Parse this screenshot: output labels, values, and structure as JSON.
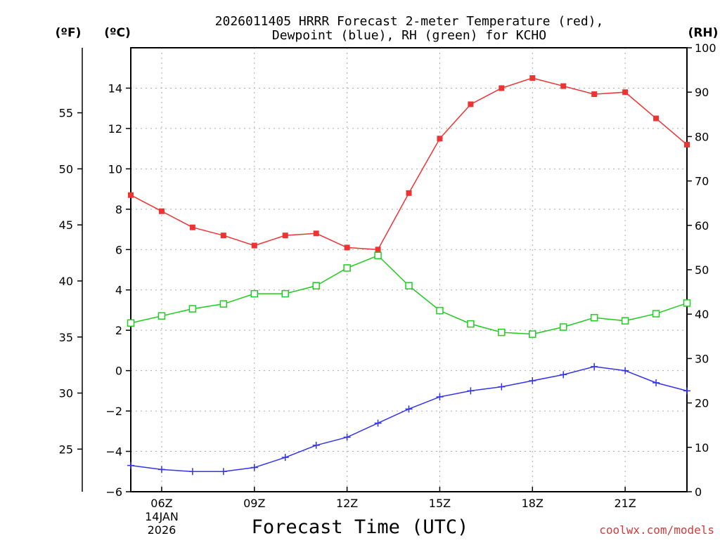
{
  "chart_data": {
    "type": "line",
    "title_line1": "2026011405 HRRR Forecast 2-meter Temperature (red),",
    "title_line2": "Dewpoint (blue), RH (green) for KCHO",
    "xlabel": "Forecast Time (UTC)",
    "ylabel_f": "(ºF)",
    "ylabel_c": "(ºC)",
    "ylabel_rh": "(RH)",
    "watermark": "coolwx.com/models",
    "x_hours": [
      5,
      6,
      7,
      8,
      9,
      10,
      11,
      12,
      13,
      14,
      15,
      16,
      17,
      18,
      19,
      20,
      21,
      22,
      23
    ],
    "xlim": [
      5,
      23
    ],
    "x_ticks": [
      {
        "hour": 6,
        "label": "06Z",
        "sub1": "14JAN",
        "sub2": "2026"
      },
      {
        "hour": 9,
        "label": "09Z"
      },
      {
        "hour": 12,
        "label": "12Z"
      },
      {
        "hour": 15,
        "label": "15Z"
      },
      {
        "hour": 18,
        "label": "18Z"
      },
      {
        "hour": 21,
        "label": "21Z"
      }
    ],
    "ylim_c": [
      -6,
      16
    ],
    "y_ticks_c": [
      -6,
      -4,
      -2,
      0,
      2,
      4,
      6,
      8,
      10,
      12,
      14
    ],
    "y_ticks_c_labels": [
      "−6",
      "−4",
      "−2",
      "0",
      "2",
      "4",
      "6",
      "8",
      "10",
      "12",
      "14"
    ],
    "y_ticks_f": [
      25,
      30,
      35,
      40,
      45,
      50,
      55
    ],
    "y_ticks_f_labels": [
      "25",
      "30",
      "35",
      "40",
      "45",
      "50",
      "55"
    ],
    "ylim_rh": [
      0,
      100
    ],
    "y_ticks_rh": [
      0,
      10,
      20,
      30,
      40,
      50,
      60,
      70,
      80,
      90,
      100
    ],
    "y_ticks_rh_labels": [
      "0",
      "10",
      "20",
      "30",
      "40",
      "50",
      "60",
      "70",
      "80",
      "90",
      "100"
    ],
    "series": [
      {
        "name": "Temperature",
        "unit": "C",
        "color": "#ee3333",
        "marker": "filled-square",
        "values": [
          8.7,
          7.9,
          7.1,
          6.7,
          6.2,
          6.7,
          6.8,
          6.1,
          6.0,
          8.8,
          11.5,
          13.2,
          14.0,
          14.5,
          14.1,
          13.7,
          13.8,
          12.5,
          11.2
        ]
      },
      {
        "name": "Dewpoint",
        "unit": "C",
        "color": "#3333ee",
        "marker": "plus",
        "values": [
          -4.7,
          -4.9,
          -5.0,
          -5.0,
          -4.8,
          -4.3,
          -3.7,
          -3.3,
          -2.6,
          -1.9,
          -1.3,
          -1.0,
          -0.8,
          -0.5,
          -0.2,
          0.2,
          0.0,
          -0.6,
          -1.0
        ]
      },
      {
        "name": "RH",
        "unit": "%",
        "color": "#22cc22",
        "marker": "open-square",
        "values": [
          38.0,
          39.6,
          41.2,
          42.3,
          44.6,
          44.6,
          46.4,
          50.4,
          53.2,
          46.4,
          40.8,
          37.8,
          35.9,
          35.5,
          37.1,
          39.2,
          38.5,
          40.1,
          42.5
        ]
      }
    ]
  }
}
